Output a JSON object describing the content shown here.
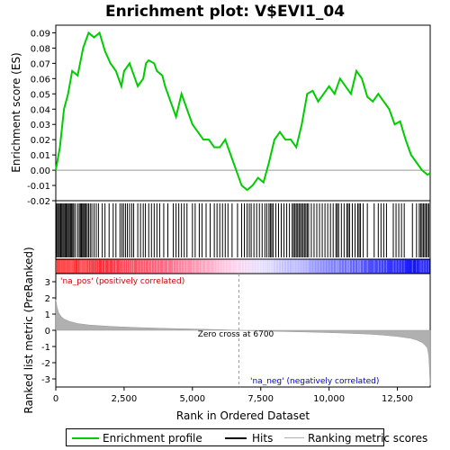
{
  "chart_data": {
    "type": "line",
    "title": "Enrichment plot: V$EVI1_04",
    "top_panel": {
      "ylabel": "Enrichment score (ES)",
      "ylim": [
        -0.02,
        0.095
      ],
      "yticks": [
        "0.09",
        "0.08",
        "0.07",
        "0.06",
        "0.05",
        "0.04",
        "0.03",
        "0.02",
        "0.01",
        "0.00",
        "-0.01",
        "-0.02"
      ],
      "ytick_values": [
        0.09,
        0.08,
        0.07,
        0.06,
        0.05,
        0.04,
        0.03,
        0.02,
        0.01,
        0.0,
        -0.01,
        -0.02
      ],
      "series": [
        {
          "name": "Enrichment profile",
          "color": "#00cc00",
          "x": [
            0,
            150,
            300,
            450,
            600,
            800,
            1000,
            1200,
            1400,
            1600,
            1800,
            2000,
            2200,
            2400,
            2500,
            2700,
            2900,
            3000,
            3200,
            3300,
            3400,
            3600,
            3700,
            3900,
            4000,
            4200,
            4400,
            4600,
            4800,
            5000,
            5200,
            5400,
            5600,
            5800,
            6000,
            6200,
            6400,
            6600,
            6800,
            7000,
            7200,
            7400,
            7600,
            7800,
            8000,
            8200,
            8400,
            8600,
            8800,
            9000,
            9200,
            9400,
            9600,
            9800,
            10000,
            10200,
            10400,
            10600,
            10800,
            11000,
            11200,
            11400,
            11600,
            11800,
            12000,
            12200,
            12400,
            12600,
            12800,
            13000,
            13200,
            13400,
            13600,
            13700
          ],
          "y": [
            0.0,
            0.015,
            0.04,
            0.05,
            0.065,
            0.062,
            0.08,
            0.09,
            0.087,
            0.09,
            0.078,
            0.07,
            0.065,
            0.055,
            0.065,
            0.07,
            0.06,
            0.055,
            0.06,
            0.07,
            0.072,
            0.07,
            0.065,
            0.062,
            0.055,
            0.045,
            0.035,
            0.05,
            0.04,
            0.03,
            0.025,
            0.02,
            0.02,
            0.015,
            0.015,
            0.02,
            0.01,
            0.0,
            -0.01,
            -0.013,
            -0.01,
            -0.005,
            -0.008,
            0.005,
            0.02,
            0.025,
            0.02,
            0.02,
            0.015,
            0.03,
            0.05,
            0.052,
            0.045,
            0.05,
            0.055,
            0.05,
            0.06,
            0.055,
            0.05,
            0.065,
            0.06,
            0.048,
            0.045,
            0.05,
            0.045,
            0.04,
            0.03,
            0.032,
            0.02,
            0.01,
            0.005,
            0.0,
            -0.003,
            -0.002
          ]
        }
      ]
    },
    "hits_panel": {
      "color": "#000000",
      "hit_positions": [
        20,
        60,
        100,
        140,
        180,
        220,
        260,
        300,
        340,
        380,
        420,
        460,
        500,
        540,
        580,
        620,
        660,
        720,
        800,
        860,
        900,
        940,
        980,
        1020,
        1060,
        1100,
        1150,
        1200,
        1260,
        1320,
        1400,
        1480,
        1560,
        1700,
        1800,
        1950,
        2100,
        2200,
        2350,
        2420,
        2480,
        2550,
        2620,
        2700,
        2780,
        2850,
        3000,
        3100,
        3200,
        3280,
        3400,
        3500,
        3600,
        3700,
        3800,
        3950,
        4100,
        4300,
        4400,
        4500,
        4600,
        4700,
        4800,
        5000,
        5100,
        5250,
        5350,
        5500,
        5650,
        5800,
        5900,
        6000,
        6100,
        6200,
        6300,
        6450,
        6650,
        6800,
        6900,
        7000,
        7080,
        7150,
        7250,
        7350,
        7450,
        7550,
        7650,
        7720,
        7800,
        7850,
        7900,
        7950,
        8050,
        8150,
        8250,
        8350,
        8450,
        8550,
        8650,
        8700,
        8750,
        8800,
        8850,
        8900,
        8950,
        9000,
        9050,
        9100,
        9150,
        9200,
        9250,
        9350,
        9450,
        9550,
        9650,
        9750,
        9850,
        9950,
        10050,
        10150,
        10250,
        10300,
        10350,
        10450,
        10550,
        10650,
        10700,
        10750,
        10850,
        10950,
        11050,
        11100,
        11150,
        11250,
        11400,
        11650,
        11800,
        11900,
        12000,
        12100,
        12350,
        12450,
        12550,
        12650,
        12750,
        13050,
        13200,
        13300,
        13350,
        13400,
        13450,
        13500,
        13550,
        13600,
        13650
      ]
    },
    "gradient_bar": {
      "pos_color": "#ff0000",
      "neg_color": "#0000ff",
      "crossover_rank": 6700
    },
    "bottom_panel": {
      "ylabel": "Ranked list metric (PreRanked)",
      "xlabel": "Rank in Ordered Dataset",
      "ylim": [
        -3.5,
        3.5
      ],
      "yticks": [
        "3",
        "2",
        "1",
        "0",
        "-1",
        "-2",
        "-3"
      ],
      "ytick_values": [
        3,
        2,
        1,
        0,
        -1,
        -2,
        -3
      ],
      "metric_color": "#b0b0b0",
      "metric_x": [
        0,
        50,
        100,
        200,
        300,
        500,
        800,
        1200,
        2000,
        3000,
        4000,
        5000,
        6000,
        6700,
        7500,
        8500,
        9500,
        10500,
        11500,
        12000,
        12500,
        13000,
        13200,
        13400,
        13500,
        13600,
        13650,
        13700
      ],
      "metric_y": [
        1.9,
        1.4,
        1.1,
        0.85,
        0.7,
        0.55,
        0.42,
        0.33,
        0.24,
        0.17,
        0.12,
        0.08,
        0.04,
        0.0,
        -0.04,
        -0.08,
        -0.12,
        -0.17,
        -0.24,
        -0.3,
        -0.38,
        -0.5,
        -0.6,
        -0.75,
        -0.9,
        -1.1,
        -1.6,
        -3.4
      ],
      "pos_label": "'na_pos' (positively correlated)",
      "neg_label": "'na_neg' (negatively correlated)",
      "zero_cross_label": "Zero cross at 6700"
    },
    "xlim": [
      0,
      13700
    ],
    "xticks": [
      "0",
      "2,500",
      "5,000",
      "7,500",
      "10,000",
      "12,500"
    ],
    "xtick_values": [
      0,
      2500,
      5000,
      7500,
      10000,
      12500
    ],
    "legend": [
      {
        "label": "Enrichment profile",
        "color": "#00cc00"
      },
      {
        "label": "Hits",
        "color": "#000000"
      },
      {
        "label": "Ranking metric scores",
        "color": "#b0b0b0"
      }
    ]
  }
}
